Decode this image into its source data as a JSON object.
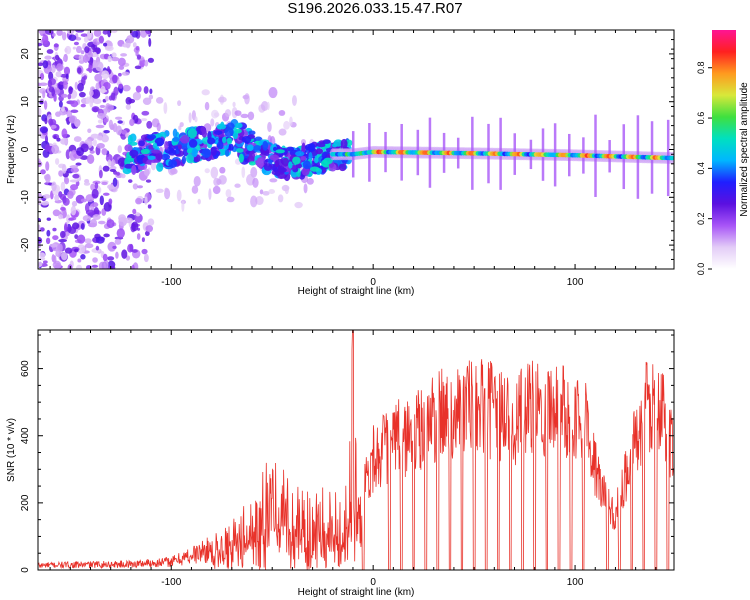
{
  "title": "S196.2026.033.15.47.R07",
  "colors": {
    "axis": "#000000",
    "snr_line": "#e8322a",
    "spectrum_low": "#e3ccf7",
    "spectrum_mid": "#6a0fe0",
    "spectrum_high": "#ee2a2a"
  },
  "chart_data": [
    {
      "type": "heatmap",
      "name": "spectrogram",
      "title": "",
      "xlabel": "Height of straight line (km)",
      "ylabel": "Frequency (Hz)",
      "xlim": [
        -166,
        149
      ],
      "ylim": [
        -25,
        25
      ],
      "x_ticks": [
        -100,
        0,
        100
      ],
      "y_ticks": [
        -20,
        -10,
        0,
        10,
        20
      ],
      "grid": false,
      "ridge": {
        "description_free_values": true,
        "x": [
          -120,
          -100,
          -80,
          -70,
          -60,
          -50,
          -40,
          -30,
          -20,
          -10,
          0,
          50,
          100,
          149
        ],
        "frequency_hz": [
          -1,
          0,
          2,
          3,
          0,
          -2,
          -3,
          -2,
          -1,
          -1,
          -0.5,
          -0.8,
          -1.2,
          -1.8
        ]
      },
      "colorbar": {
        "label": "Normalized spectral amplitude",
        "range": [
          0,
          0.95
        ],
        "ticks": [
          0.0,
          0.2,
          0.4,
          0.6,
          0.8
        ],
        "tick_labels": [
          "0.0",
          "0.2",
          "0.4",
          "0.6",
          "0.8"
        ],
        "colormap": [
          "#ffffff",
          "#e3ccf7",
          "#a855f7",
          "#5b10e0",
          "#1f1fff",
          "#00b7ff",
          "#00e0c0",
          "#3fe03f",
          "#d8e83a",
          "#ff9a1f",
          "#ff2020",
          "#ff1493"
        ]
      }
    },
    {
      "type": "line",
      "name": "snr",
      "title": "",
      "xlabel": "Height of straight line (km)",
      "ylabel": "SNR (10 * v/v)",
      "xlim": [
        -166,
        149
      ],
      "ylim": [
        0,
        715
      ],
      "x_ticks": [
        -100,
        0,
        100
      ],
      "y_ticks": [
        0,
        200,
        400,
        600
      ],
      "grid": false,
      "envelope": {
        "x": [
          -166,
          -120,
          -100,
          -80,
          -60,
          -50,
          -45,
          -40,
          -30,
          -20,
          -12,
          -10,
          -8,
          0,
          10,
          20,
          30,
          40,
          50,
          60,
          70,
          80,
          90,
          100,
          105,
          110,
          115,
          120,
          125,
          130,
          135,
          140,
          145,
          149
        ],
        "snr": [
          20,
          25,
          35,
          90,
          200,
          330,
          280,
          250,
          220,
          230,
          260,
          715,
          230,
          420,
          480,
          500,
          560,
          600,
          610,
          590,
          560,
          600,
          610,
          600,
          560,
          380,
          260,
          200,
          360,
          480,
          590,
          620,
          560,
          430
        ]
      },
      "dropouts_x": [
        -5,
        8,
        14,
        20,
        26,
        32,
        38,
        44,
        50,
        56,
        62,
        68,
        74,
        80,
        86,
        92,
        98,
        104,
        116,
        122,
        128,
        134,
        140,
        146
      ]
    }
  ]
}
